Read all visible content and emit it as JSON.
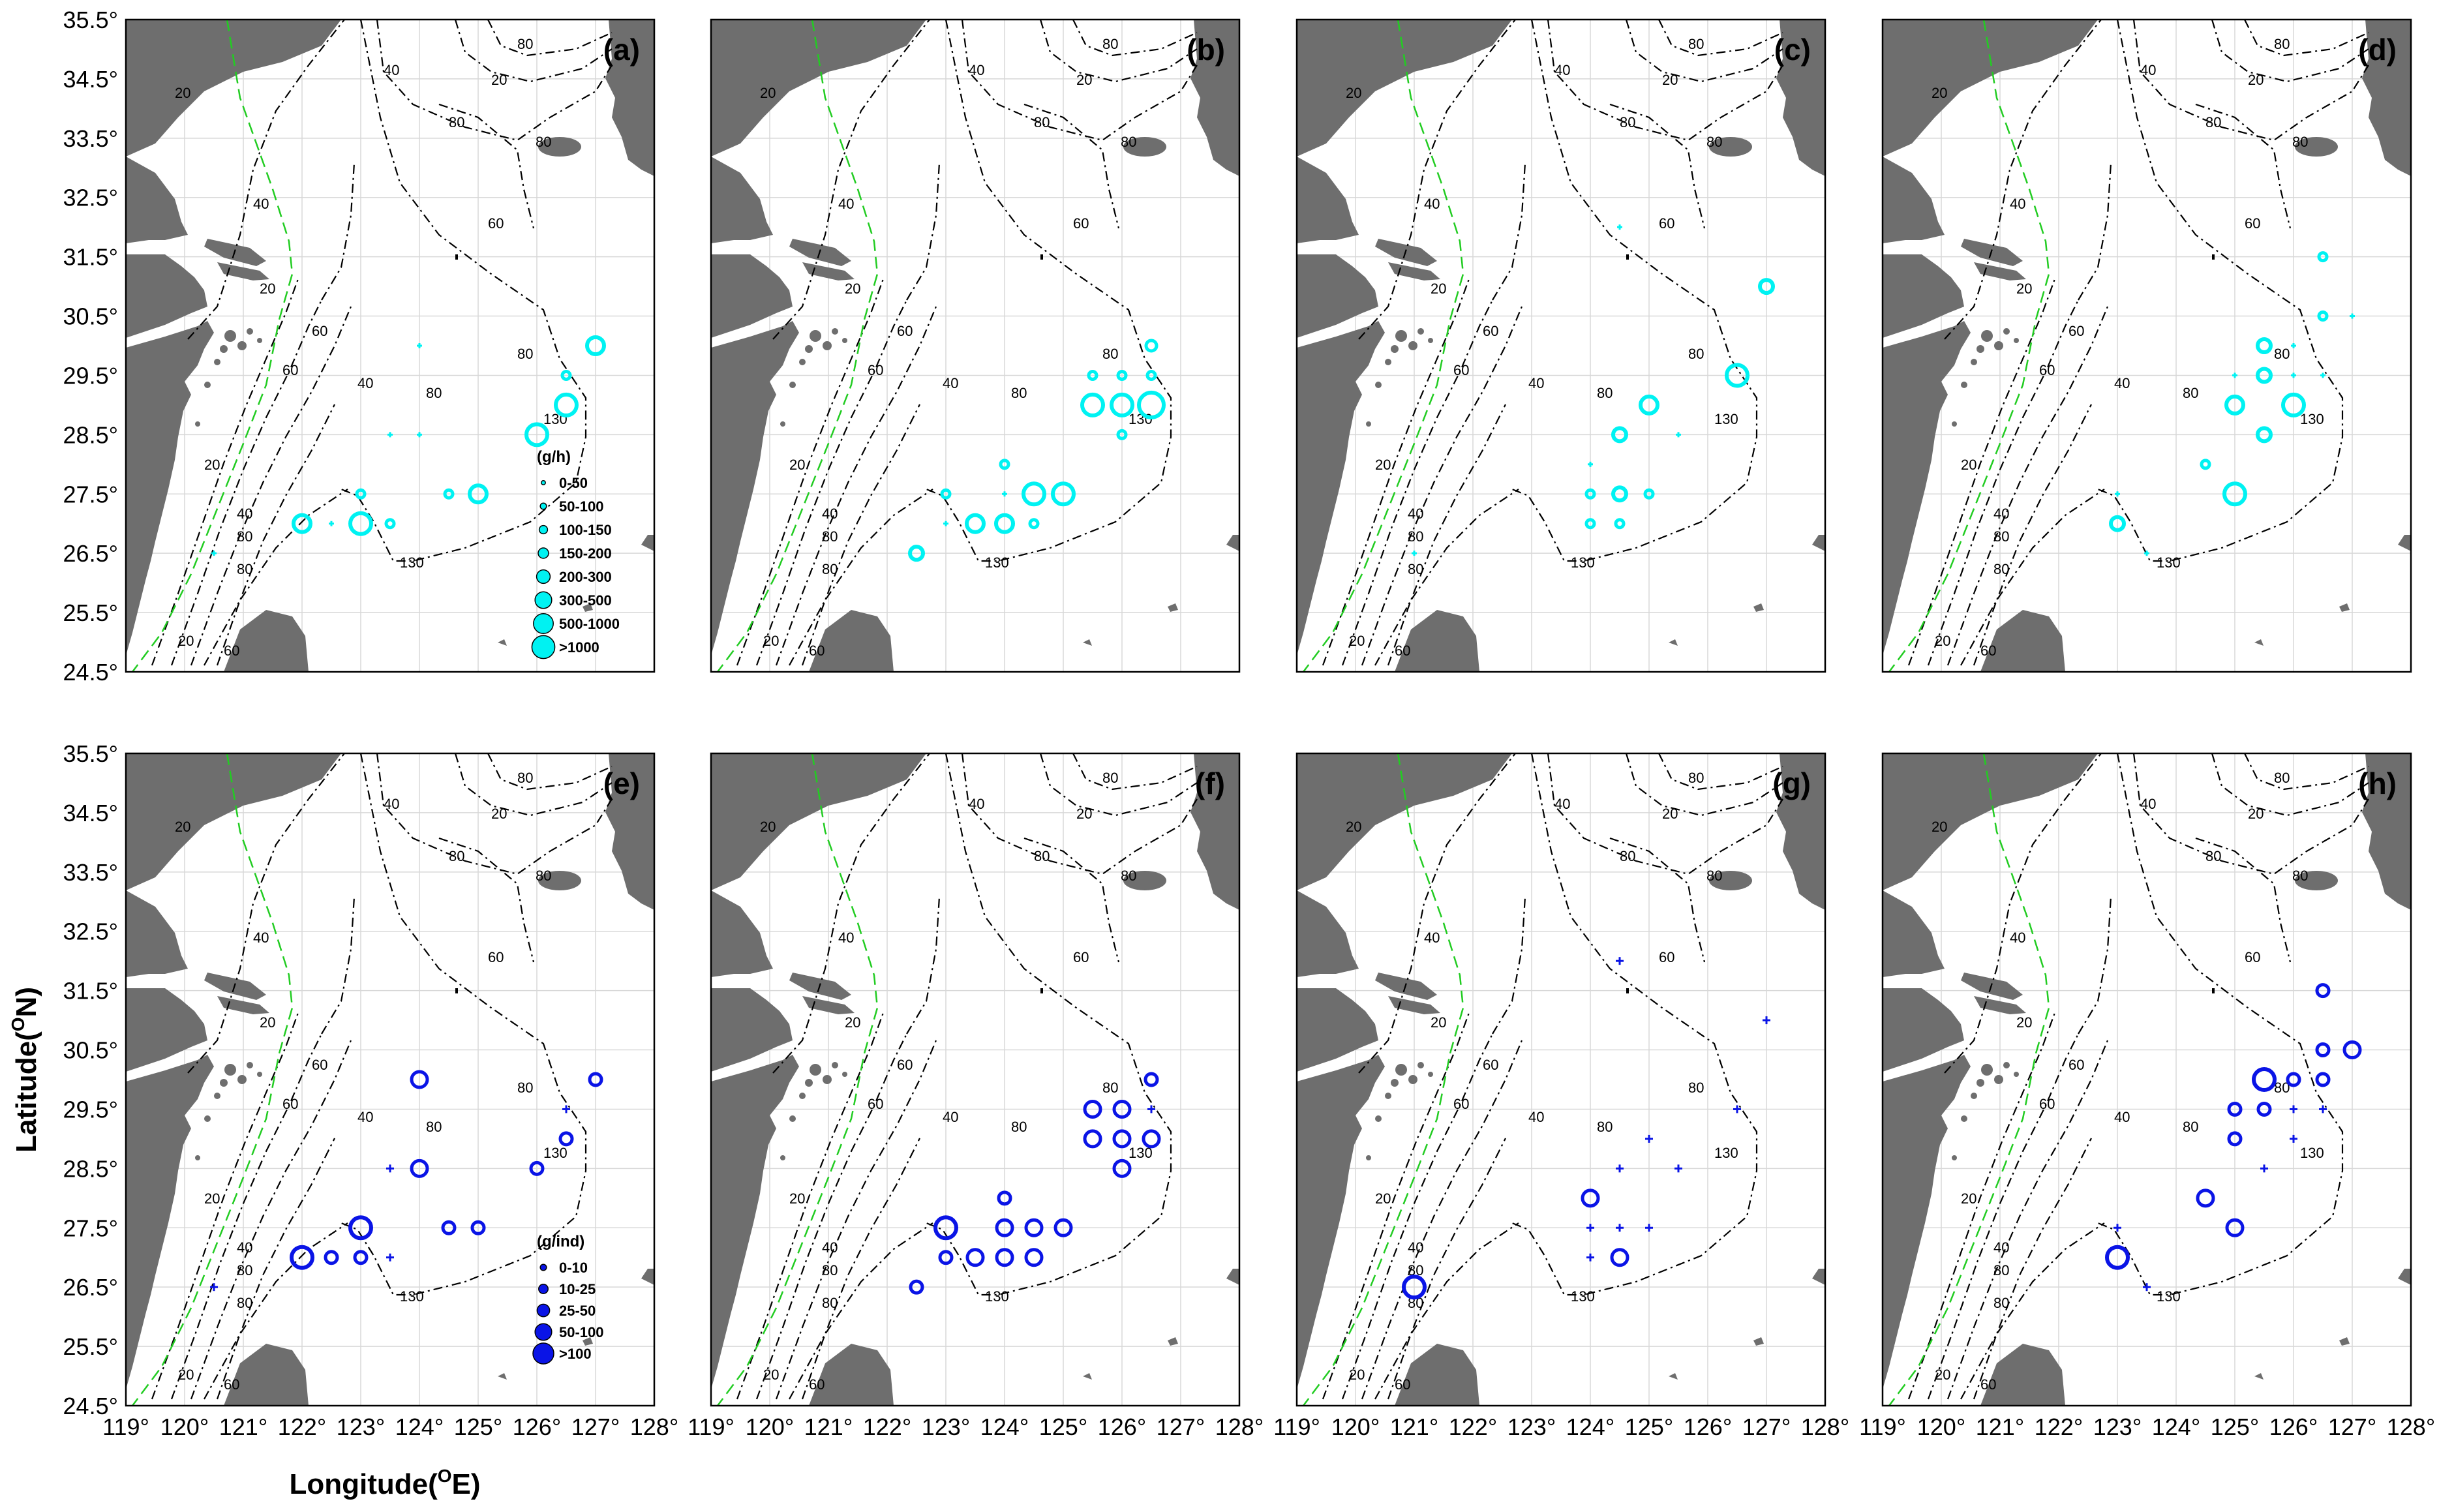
{
  "axes": {
    "lon_min": 119,
    "lon_max": 128,
    "lat_min": 24.5,
    "lat_max": 35.5,
    "lon_ticks": [
      "119°",
      "120°",
      "121°",
      "122°",
      "123°",
      "124°",
      "125°",
      "126°",
      "127°",
      "128°"
    ],
    "lat_ticks": [
      "35.5°",
      "34.5°",
      "33.5°",
      "32.5°",
      "31.5°",
      "30.5°",
      "29.5°",
      "28.5°",
      "27.5°",
      "26.5°",
      "25.5°",
      "24.5°"
    ],
    "xlabel": "Longitude(",
    "xlabel_sup": "O",
    "xlabel_end": "E)",
    "ylabel": "Latitude(",
    "ylabel_sup": "O",
    "ylabel_end": "N)"
  },
  "colors": {
    "land": "#6e6e6e",
    "grid": "#d8d8d8",
    "top_marker": "#00f2f2",
    "bottom_marker": "#0a14e6",
    "boundary": "#22cc22"
  },
  "isobath_labels": [
    "20",
    "40",
    "60",
    "80",
    "130"
  ],
  "legends": {
    "top": {
      "unit": "(g/h)",
      "classes": [
        "0-50",
        "50-100",
        "100-150",
        "150-200",
        "200-300",
        "300-500",
        "500-1000",
        ">1000"
      ]
    },
    "bottom": {
      "unit": "(g/ind)",
      "classes": [
        "0-10",
        "10-25",
        "25-50",
        "50-100",
        ">100"
      ]
    }
  },
  "chart_data": [
    {
      "panel": "(a)",
      "type": "scatter",
      "unit": "(g/h)",
      "points": [
        [
          122,
          27,
          5
        ],
        [
          122.5,
          27,
          1
        ],
        [
          123,
          27.5,
          2
        ],
        [
          123,
          27,
          6
        ],
        [
          123.5,
          27,
          2
        ],
        [
          123.5,
          28.5,
          1
        ],
        [
          124,
          28.5,
          1
        ],
        [
          124,
          30,
          1
        ],
        [
          124.5,
          27.5,
          2
        ],
        [
          125,
          27.5,
          5
        ],
        [
          126,
          28.5,
          6
        ],
        [
          126.5,
          29,
          6
        ],
        [
          126.5,
          29.5,
          2
        ],
        [
          127,
          30,
          5
        ],
        [
          120.5,
          26.5,
          1
        ]
      ]
    },
    {
      "panel": "(b)",
      "type": "scatter",
      "unit": "(g/h)",
      "points": [
        [
          122.5,
          26.5,
          4
        ],
        [
          123,
          27.5,
          2
        ],
        [
          123,
          27,
          1
        ],
        [
          123.5,
          27,
          5
        ],
        [
          124,
          27,
          5
        ],
        [
          124,
          27.5,
          1
        ],
        [
          124,
          28,
          2
        ],
        [
          124.5,
          27.5,
          6
        ],
        [
          124.5,
          27,
          2
        ],
        [
          125,
          27.5,
          6
        ],
        [
          125.5,
          29,
          6
        ],
        [
          125.5,
          29.5,
          2
        ],
        [
          126,
          29,
          6
        ],
        [
          126,
          29.5,
          2
        ],
        [
          126,
          28.5,
          2
        ],
        [
          126.5,
          29,
          7
        ],
        [
          126.5,
          29.5,
          2
        ],
        [
          126.5,
          30,
          3
        ]
      ]
    },
    {
      "panel": "(c)",
      "type": "scatter",
      "unit": "(g/h)",
      "points": [
        [
          121,
          26.5,
          1
        ],
        [
          124,
          27,
          2
        ],
        [
          124,
          27.5,
          2
        ],
        [
          124,
          28,
          1
        ],
        [
          124.5,
          27,
          2
        ],
        [
          124.5,
          27.5,
          4
        ],
        [
          124.5,
          28.5,
          4
        ],
        [
          124.5,
          32,
          1
        ],
        [
          125,
          27.5,
          2
        ],
        [
          125,
          29,
          5
        ],
        [
          125.5,
          28.5,
          1
        ],
        [
          126.5,
          29.5,
          6
        ],
        [
          127,
          31,
          4
        ]
      ]
    },
    {
      "panel": "(d)",
      "type": "scatter",
      "unit": "(g/h)",
      "points": [
        [
          123,
          27.5,
          1
        ],
        [
          123,
          27,
          4
        ],
        [
          123.5,
          26.5,
          1
        ],
        [
          124.5,
          28,
          2
        ],
        [
          125,
          29,
          5
        ],
        [
          125,
          29.5,
          1
        ],
        [
          125,
          27.5,
          6
        ],
        [
          125.5,
          29.5,
          4
        ],
        [
          125.5,
          30,
          4
        ],
        [
          125.5,
          28.5,
          4
        ],
        [
          126,
          29.5,
          1
        ],
        [
          126,
          30,
          1
        ],
        [
          126,
          29,
          6
        ],
        [
          126.5,
          29.5,
          1
        ],
        [
          126.5,
          30.5,
          2
        ],
        [
          126.5,
          31.5,
          2
        ],
        [
          127,
          30.5,
          1
        ]
      ]
    },
    {
      "panel": "(e)",
      "type": "scatter",
      "unit": "(g/ind)",
      "points": [
        [
          120.5,
          26.5,
          1
        ],
        [
          122,
          27,
          4
        ],
        [
          122.5,
          27,
          2
        ],
        [
          123,
          27.5,
          4
        ],
        [
          123,
          27,
          2
        ],
        [
          123.5,
          27,
          1
        ],
        [
          123.5,
          28.5,
          1
        ],
        [
          124,
          28.5,
          3
        ],
        [
          124,
          30,
          3
        ],
        [
          124.5,
          27.5,
          2
        ],
        [
          125,
          27.5,
          2
        ],
        [
          126,
          28.5,
          2
        ],
        [
          126.5,
          29,
          2
        ],
        [
          126.5,
          29.5,
          1
        ],
        [
          127,
          30,
          2
        ]
      ]
    },
    {
      "panel": "(f)",
      "type": "scatter",
      "unit": "(g/ind)",
      "points": [
        [
          122.5,
          26.5,
          2
        ],
        [
          123,
          27.5,
          4
        ],
        [
          123,
          27,
          2
        ],
        [
          123.5,
          27,
          3
        ],
        [
          124,
          27,
          3
        ],
        [
          124,
          27.5,
          3
        ],
        [
          124,
          28,
          2
        ],
        [
          124.5,
          27.5,
          3
        ],
        [
          124.5,
          27,
          3
        ],
        [
          125,
          27.5,
          3
        ],
        [
          125.5,
          29.5,
          3
        ],
        [
          125.5,
          29,
          3
        ],
        [
          126,
          29.5,
          3
        ],
        [
          126,
          29,
          3
        ],
        [
          126,
          28.5,
          3
        ],
        [
          126.5,
          29.5,
          1
        ],
        [
          126.5,
          29,
          3
        ],
        [
          126.5,
          30,
          2
        ]
      ]
    },
    {
      "panel": "(g)",
      "type": "scatter",
      "unit": "(g/ind)",
      "points": [
        [
          121,
          26.5,
          4
        ],
        [
          124,
          27,
          1
        ],
        [
          124,
          27.5,
          1
        ],
        [
          124,
          28,
          3
        ],
        [
          124.5,
          27,
          3
        ],
        [
          124.5,
          27.5,
          1
        ],
        [
          124.5,
          28.5,
          1
        ],
        [
          124.5,
          32,
          1
        ],
        [
          125,
          27.5,
          1
        ],
        [
          125,
          29,
          1
        ],
        [
          125.5,
          28.5,
          1
        ],
        [
          126.5,
          29.5,
          1
        ],
        [
          127,
          31,
          1
        ]
      ]
    },
    {
      "panel": "(h)",
      "type": "scatter",
      "unit": "(g/ind)",
      "points": [
        [
          123,
          27.5,
          1
        ],
        [
          123,
          27,
          4
        ],
        [
          123.5,
          26.5,
          1
        ],
        [
          124.5,
          28,
          3
        ],
        [
          125,
          29.5,
          2
        ],
        [
          125,
          29,
          2
        ],
        [
          125,
          27.5,
          3
        ],
        [
          125.5,
          30,
          4
        ],
        [
          125.5,
          29.5,
          2
        ],
        [
          125.5,
          28.5,
          1
        ],
        [
          126,
          30,
          2
        ],
        [
          126,
          29.5,
          1
        ],
        [
          126,
          29,
          1
        ],
        [
          126.5,
          30,
          2
        ],
        [
          126.5,
          29.5,
          1
        ],
        [
          126.5,
          30.5,
          2
        ],
        [
          126.5,
          31.5,
          2
        ],
        [
          127,
          30.5,
          3
        ]
      ]
    }
  ]
}
